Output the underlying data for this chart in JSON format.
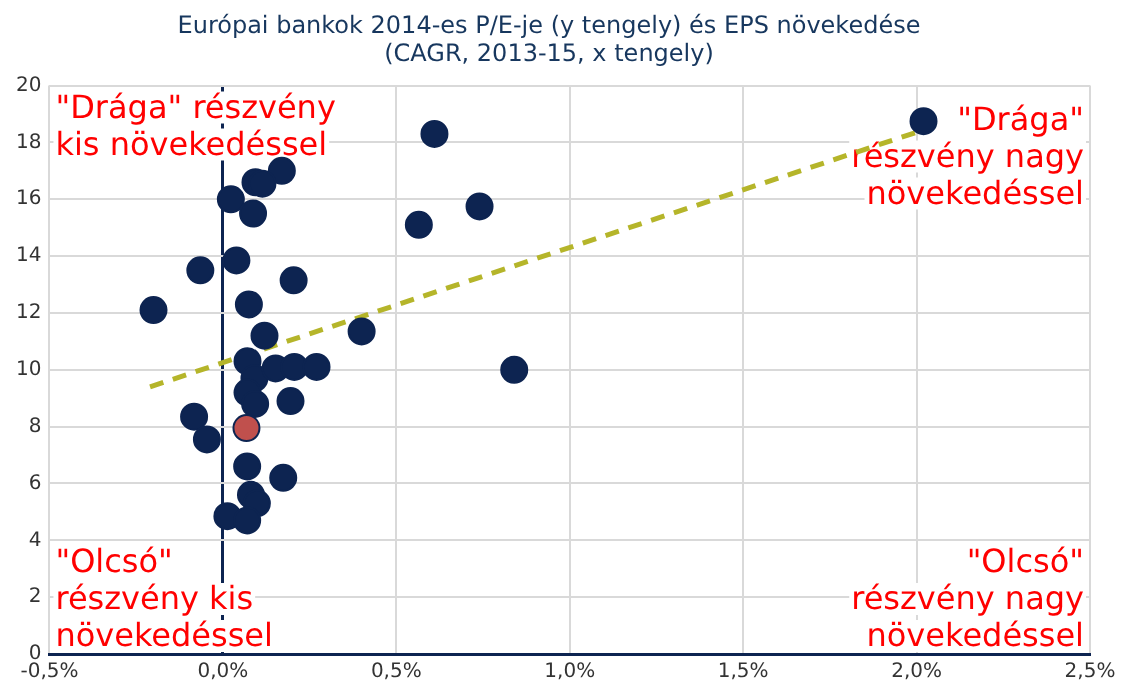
{
  "chart_data": {
    "type": "scatter",
    "title": "Európai bankok 2014-es P/E-je (y tengely) és EPS növekedése\n(CAGR, 2013-15, x tengely)",
    "series": [
      {
        "color": "#0d2451",
        "colors": [
          "#0d2451",
          "#0d2451",
          "#0d2451",
          "#0d2451",
          "#0d2451",
          "#0d2451",
          "#0d2451",
          "#0d2451",
          "#0d2451",
          "#0d2451",
          "#0d2451",
          "#0d2451",
          "#0d2451",
          "#0d2451",
          "#0d2451",
          "#0d2451",
          "#0d2451",
          "#0d2451",
          "#0d2451",
          "#0d2451",
          "#0d2451",
          "#0d2451",
          "#0d2451",
          "#0d2451",
          "#0d2451",
          "#0d2451",
          "#c0504d",
          "#0d2451",
          "#0d2451",
          "#0d2451",
          "#0d2451",
          "#0d2451",
          "#0d2451",
          "#0d2451"
        ],
        "x": [
          0.61,
          0.17,
          0.094,
          0.114,
          0.023,
          0.087,
          0.74,
          0.565,
          -0.065,
          0.039,
          0.204,
          -0.2,
          0.075,
          0.12,
          0.4,
          0.84,
          0.071,
          0.091,
          0.152,
          0.206,
          0.27,
          0.071,
          0.093,
          0.195,
          -0.083,
          -0.046,
          0.068,
          0.07,
          0.174,
          0.081,
          0.098,
          0.013,
          0.07,
          2.02
        ],
        "values": [
          18.3,
          17.0,
          16.6,
          16.55,
          16.0,
          15.5,
          15.75,
          15.1,
          13.5,
          13.85,
          13.15,
          12.1,
          12.3,
          11.2,
          11.35,
          10.0,
          10.3,
          9.7,
          10.05,
          10.1,
          10.1,
          9.2,
          8.8,
          8.9,
          8.35,
          7.55,
          7.95,
          6.6,
          6.2,
          5.6,
          5.3,
          4.85,
          4.7,
          18.75
        ]
      },
      {
        "type": "line",
        "color": "#b5b52a",
        "line_style": "dashed",
        "marker": "none",
        "x": [
          -0.21,
          2.01
        ],
        "values": [
          9.4,
          18.4
        ]
      }
    ],
    "xlim": [
      -0.5,
      2.5
    ],
    "xticks": [
      {
        "value": -0.5,
        "label": "-0,5%"
      },
      {
        "value": 0,
        "label": "0,0%"
      },
      {
        "value": 0.5,
        "label": "0,5%"
      },
      {
        "value": 1,
        "label": "1,0%"
      },
      {
        "value": 1.5,
        "label": "1,5%"
      },
      {
        "value": 2,
        "label": "2,0%"
      },
      {
        "value": 2.5,
        "label": "2,5%"
      }
    ],
    "ylim": [
      0,
      20
    ],
    "yticks": [
      0,
      2,
      4,
      6,
      8,
      10,
      12,
      14,
      16,
      18,
      20
    ],
    "grid": true,
    "legend": false,
    "marker": "circle",
    "annotations": [
      "\"Drága\" részvény\nkis növekedéssel",
      "\"Drága\"\nrészvény nagy\nnövekedéssel",
      "\"Olcsó\"\nrészvény kis\nnövekedéssel",
      "\"Olcsó\"\nrészvény nagy\nnövekedéssel"
    ]
  }
}
